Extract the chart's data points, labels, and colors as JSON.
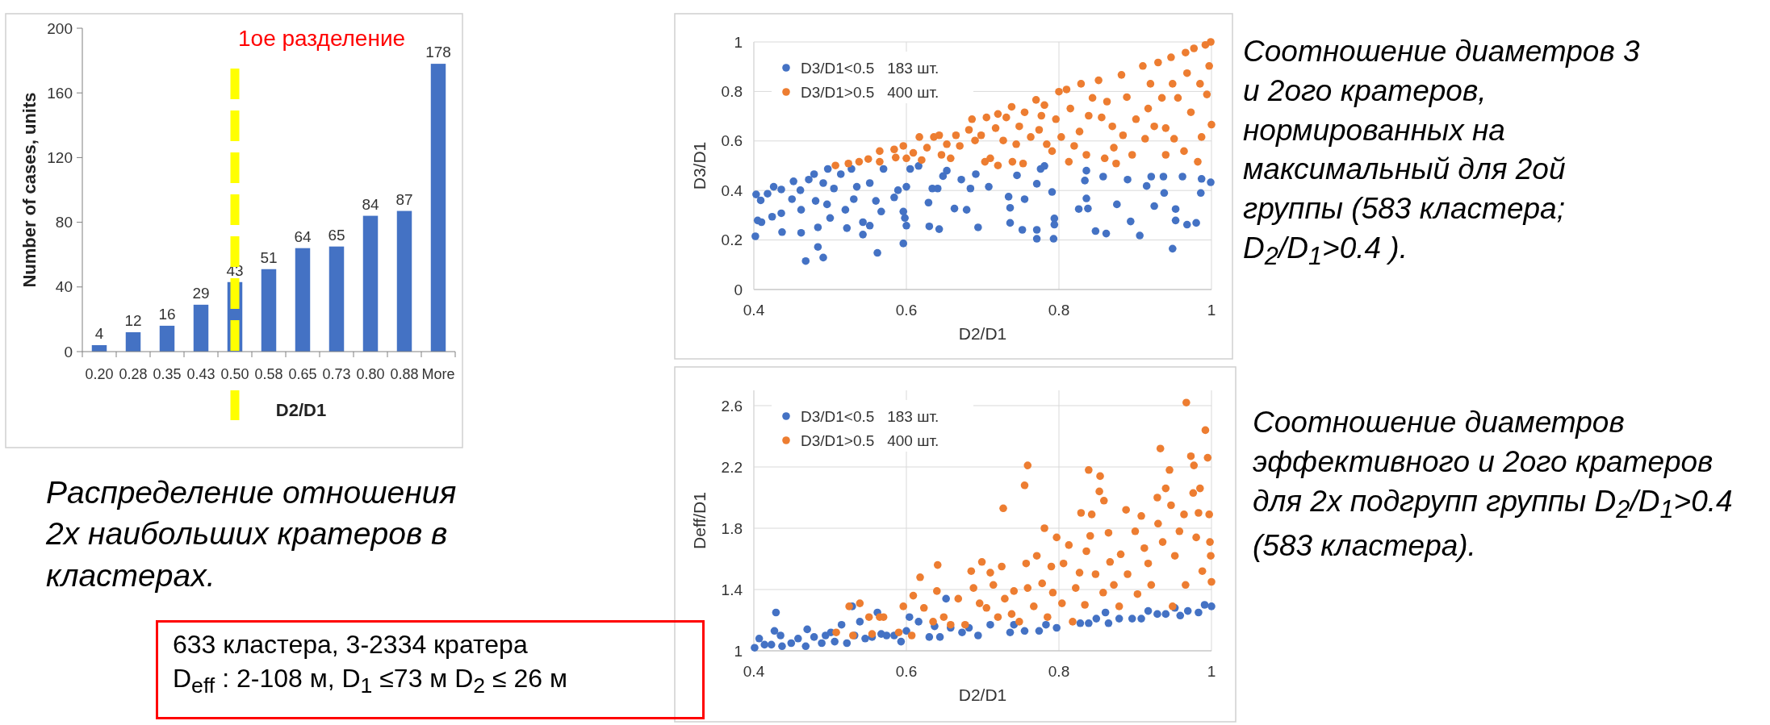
{
  "chart_data": [
    {
      "type": "bar",
      "xlabel": "D2/D1",
      "ylabel": "Number of cases, units",
      "categories": [
        "0.20",
        "0.28",
        "0.35",
        "0.43",
        "0.50",
        "0.58",
        "0.65",
        "0.73",
        "0.80",
        "0.88",
        "More"
      ],
      "values": [
        4,
        12,
        16,
        29,
        43,
        51,
        64,
        65,
        84,
        87,
        178
      ],
      "color": "#4472c4",
      "ylim": [
        0,
        200
      ],
      "yticks": [
        0,
        40,
        80,
        120,
        160,
        200
      ],
      "data_labels": true,
      "ref_lines": [
        {
          "axis": "x",
          "value": "0.50",
          "label": "1ое разделение",
          "color": "#ffff00",
          "line_style": "dashed"
        }
      ],
      "annotations": [
        "Распределение отношения 2х наибольших кратеров в кластерах.",
        "633 кластера, 3-2334 кратера\nD$_{eff}$ : 2-108 м, D$_{1}$ ≤73 м D$_{2}$ ≤ 26 м"
      ]
    },
    {
      "type": "scatter",
      "xlabel": "D2/D1",
      "ylabel": "D3/D1",
      "xlim": [
        0.4,
        1
      ],
      "xticks": [
        0.4,
        0.6,
        0.8,
        1
      ],
      "ylim": [
        0,
        1
      ],
      "yticks": [
        0,
        0.2,
        0.4,
        0.6,
        0.8,
        1
      ],
      "grid": true,
      "legend": "top left",
      "marker": "circle",
      "series": [
        {
          "name": "D3/D1<0.5   183 шт.",
          "color": "#4472c4",
          "x": [
            0.402,
            0.403,
            0.405,
            0.41,
            0.409,
            0.418,
            0.426,
            0.424,
            0.436,
            0.437,
            0.436,
            0.45,
            0.452,
            0.461,
            0.462,
            0.462,
            0.468,
            0.472,
            0.479,
            0.484,
            0.484,
            0.481,
            0.491,
            0.491,
            0.496,
            0.5,
            0.497,
            0.505,
            0.514,
            0.52,
            0.522,
            0.528,
            0.531,
            0.535,
            0.543,
            0.543,
            0.552,
            0.552,
            0.56,
            0.562,
            0.567,
            0.57,
            0.584,
            0.589,
            0.596,
            0.596,
            0.598,
            0.6,
            0.6,
            0.605,
            0.616,
            0.629,
            0.63,
            0.634,
            0.641,
            0.643,
            0.648,
            0.653,
            0.663,
            0.672,
            0.679,
            0.684,
            0.691,
            0.694,
            0.708,
            0.734,
            0.736,
            0.736,
            0.745,
            0.752,
            0.755,
            0.771,
            0.771,
            0.771,
            0.776,
            0.781,
            0.791,
            0.793,
            0.794,
            0.794,
            0.826,
            0.836,
            0.836,
            0.838,
            0.834,
            0.848,
            0.858,
            0.862,
            0.876,
            0.89,
            0.894,
            0.906,
            0.915,
            0.921,
            0.925,
            0.937,
            0.938,
            0.949,
            0.953,
            0.953,
            0.962,
            0.968,
            0.98,
            0.986,
            0.987,
            0.999
          ],
          "values": [
            0.215,
            0.384,
            0.279,
            0.272,
            0.36,
            0.387,
            0.415,
            0.294,
            0.308,
            0.232,
            0.404,
            0.365,
            0.437,
            0.401,
            0.322,
            0.229,
            0.115,
            0.444,
            0.466,
            0.172,
            0.251,
            0.358,
            0.129,
            0.43,
            0.344,
            0.289,
            0.487,
            0.408,
            0.466,
            0.322,
            0.248,
            0.487,
            0.365,
            0.415,
            0.272,
            0.222,
            0.258,
            0.43,
            0.358,
            0.148,
            0.315,
            0.487,
            0.372,
            0.401,
            0.315,
            0.186,
            0.289,
            0.258,
            0.415,
            0.487,
            0.499,
            0.351,
            0.255,
            0.408,
            0.408,
            0.244,
            0.458,
            0.48,
            0.327,
            0.444,
            0.322,
            0.408,
            0.466,
            0.251,
            0.415,
            0.375,
            0.33,
            0.269,
            0.461,
            0.241,
            0.365,
            0.241,
            0.205,
            0.427,
            0.487,
            0.499,
            0.394,
            0.205,
            0.287,
            0.262,
            0.325,
            0.48,
            0.368,
            0.327,
            0.44,
            0.236,
            0.456,
            0.226,
            0.344,
            0.444,
            0.275,
            0.218,
            0.418,
            0.456,
            0.337,
            0.456,
            0.39,
            0.165,
            0.325,
            0.279,
            0.456,
            0.262,
            0.269,
            0.39,
            0.447,
            0.433
          ]
        },
        {
          "name": "D3/D1>0.5   400 шт.",
          "color": "#ed7d31",
          "x": [
            0.507,
            0.524,
            0.538,
            0.55,
            0.565,
            0.565,
            0.584,
            0.586,
            0.596,
            0.6,
            0.609,
            0.617,
            0.62,
            0.627,
            0.636,
            0.643,
            0.646,
            0.653,
            0.658,
            0.665,
            0.67,
            0.682,
            0.686,
            0.69,
            0.698,
            0.703,
            0.705,
            0.71,
            0.717,
            0.72,
            0.72,
            0.727,
            0.731,
            0.739,
            0.738,
            0.744,
            0.748,
            0.753,
            0.755,
            0.763,
            0.77,
            0.774,
            0.777,
            0.781,
            0.784,
            0.791,
            0.796,
            0.8,
            0.803,
            0.81,
            0.813,
            0.815,
            0.82,
            0.827,
            0.829,
            0.836,
            0.839,
            0.844,
            0.852,
            0.856,
            0.86,
            0.863,
            0.87,
            0.872,
            0.875,
            0.882,
            0.884,
            0.889,
            0.896,
            0.901,
            0.91,
            0.913,
            0.917,
            0.92,
            0.925,
            0.93,
            0.935,
            0.94,
            0.94,
            0.947,
            0.949,
            0.951,
            0.956,
            0.964,
            0.966,
            0.968,
            0.973,
            0.977,
            0.982,
            0.985,
            0.987,
            0.992,
            0.994,
            0.997,
            0.999,
            1.0
          ],
          "values": [
            0.501,
            0.509,
            0.516,
            0.527,
            0.559,
            0.516,
            0.566,
            0.533,
            0.58,
            0.53,
            0.552,
            0.616,
            0.523,
            0.573,
            0.616,
            0.623,
            0.544,
            0.587,
            0.53,
            0.623,
            0.58,
            0.645,
            0.688,
            0.602,
            0.623,
            0.516,
            0.695,
            0.53,
            0.652,
            0.709,
            0.501,
            0.602,
            0.695,
            0.516,
            0.738,
            0.587,
            0.659,
            0.509,
            0.716,
            0.616,
            0.766,
            0.645,
            0.702,
            0.745,
            0.587,
            0.559,
            0.688,
            0.799,
            0.616,
            0.808,
            0.516,
            0.731,
            0.58,
            0.638,
            0.831,
            0.544,
            0.702,
            0.774,
            0.845,
            0.695,
            0.53,
            0.759,
            0.659,
            0.573,
            0.509,
            0.867,
            0.623,
            0.777,
            0.544,
            0.688,
            0.903,
            0.609,
            0.731,
            0.831,
            0.659,
            0.917,
            0.774,
            0.652,
            0.544,
            0.938,
            0.831,
            0.609,
            0.774,
            0.559,
            0.957,
            0.874,
            0.716,
            0.974,
            0.516,
            0.831,
            0.616,
            0.988,
            0.788,
            0.903,
            1.0,
            0.666
          ]
        }
      ],
      "annotations": [
        "Соотношение диаметров 3 и 2ого кратеров, нормированных на максимальный для 2ой группы (583 кластера; D$_{2}$/D$_{1}$>0.4 )."
      ]
    },
    {
      "type": "scatter",
      "xlabel": "D2/D1",
      "ylabel": "Deff/D1",
      "xlim": [
        0.4,
        1
      ],
      "xticks": [
        0.4,
        0.6,
        0.8,
        1
      ],
      "ylim": [
        1,
        2.7
      ],
      "yticks": [
        1,
        1.4,
        1.8,
        2.2,
        2.6
      ],
      "grid": true,
      "legend": "top left",
      "marker": "circle",
      "series": [
        {
          "name": "D3/D1<0.5   183 шт.",
          "color": "#4472c4",
          "x": [
            0.401,
            0.407,
            0.414,
            0.423,
            0.429,
            0.427,
            0.435,
            0.437,
            0.449,
            0.458,
            0.47,
            0.468,
            0.479,
            0.489,
            0.494,
            0.501,
            0.506,
            0.515,
            0.522,
            0.529,
            0.532,
            0.539,
            0.546,
            0.555,
            0.562,
            0.567,
            0.574,
            0.584,
            0.593,
            0.6,
            0.604,
            0.616,
            0.63,
            0.637,
            0.644,
            0.652,
            0.658,
            0.673,
            0.682,
            0.694,
            0.71,
            0.736,
            0.741,
            0.755,
            0.774,
            0.783,
            0.797,
            0.828,
            0.839,
            0.849,
            0.861,
            0.865,
            0.879,
            0.896,
            0.908,
            0.917,
            0.929,
            0.94,
            0.952,
            0.959,
            0.969,
            0.983,
            0.991,
            1.0
          ],
          "values": [
            1.02,
            1.08,
            1.04,
            1.04,
            1.25,
            1.13,
            1.1,
            1.03,
            1.05,
            1.08,
            1.14,
            1.03,
            1.09,
            1.05,
            1.1,
            1.12,
            1.06,
            1.17,
            1.05,
            1.29,
            1.1,
            1.19,
            1.08,
            1.09,
            1.25,
            1.11,
            1.1,
            1.1,
            1.06,
            1.13,
            1.22,
            1.19,
            1.09,
            1.16,
            1.09,
            1.34,
            1.15,
            1.12,
            1.15,
            1.1,
            1.17,
            1.12,
            1.17,
            1.13,
            1.13,
            1.17,
            1.15,
            1.18,
            1.18,
            1.21,
            1.25,
            1.18,
            1.21,
            1.21,
            1.21,
            1.26,
            1.24,
            1.24,
            1.28,
            1.23,
            1.26,
            1.25,
            1.3,
            1.29
          ]
        },
        {
          "name": "D3/D1>0.5   400 шт.",
          "color": "#ed7d31",
          "x": [
            0.508,
            0.525,
            0.53,
            0.539,
            0.551,
            0.555,
            0.565,
            0.57,
            0.59,
            0.596,
            0.607,
            0.609,
            0.618,
            0.623,
            0.635,
            0.64,
            0.641,
            0.649,
            0.658,
            0.668,
            0.677,
            0.685,
            0.688,
            0.696,
            0.699,
            0.705,
            0.71,
            0.714,
            0.72,
            0.725,
            0.727,
            0.729,
            0.738,
            0.741,
            0.748,
            0.755,
            0.757,
            0.759,
            0.759,
            0.767,
            0.771,
            0.778,
            0.781,
            0.785,
            0.79,
            0.792,
            0.797,
            0.804,
            0.806,
            0.813,
            0.818,
            0.822,
            0.827,
            0.829,
            0.834,
            0.836,
            0.839,
            0.841,
            0.843,
            0.848,
            0.853,
            0.854,
            0.858,
            0.859,
            0.865,
            0.867,
            0.872,
            0.879,
            0.881,
            0.888,
            0.89,
            0.9,
            0.903,
            0.908,
            0.912,
            0.917,
            0.921,
            0.929,
            0.93,
            0.933,
            0.936,
            0.94,
            0.945,
            0.947,
            0.949,
            0.952,
            0.958,
            0.964,
            0.966,
            0.967,
            0.973,
            0.976,
            0.977,
            0.98,
            0.983,
            0.985,
            0.988,
            0.992,
            0.995,
            0.997,
            0.998,
            1.0,
            0.999
          ],
          "values": [
            1.12,
            1.29,
            1.1,
            1.31,
            1.22,
            1.11,
            1.22,
            1.22,
            1.12,
            1.29,
            1.1,
            1.36,
            1.48,
            1.28,
            1.19,
            1.39,
            1.56,
            1.22,
            1.17,
            1.34,
            1.17,
            1.52,
            1.41,
            1.31,
            1.58,
            1.28,
            1.51,
            1.43,
            1.22,
            1.55,
            1.93,
            1.34,
            1.24,
            1.39,
            1.19,
            2.08,
            1.57,
            2.21,
            1.41,
            1.29,
            1.62,
            1.44,
            1.8,
            1.22,
            1.55,
            1.38,
            1.74,
            1.31,
            1.57,
            1.69,
            1.19,
            1.41,
            1.51,
            1.9,
            1.3,
            1.65,
            2.18,
            1.75,
            1.89,
            1.5,
            2.04,
            2.14,
            1.38,
            1.98,
            1.77,
            1.58,
            1.43,
            1.29,
            1.63,
            1.92,
            1.5,
            1.78,
            1.37,
            1.88,
            1.67,
            1.57,
            1.43,
            2.0,
            1.83,
            2.32,
            1.71,
            2.06,
            2.18,
            1.95,
            1.29,
            1.62,
            1.78,
            1.89,
            1.43,
            2.62,
            2.27,
            2.03,
            2.21,
            1.74,
            1.9,
            2.06,
            1.52,
            2.44,
            2.26,
            1.89,
            1.71,
            1.45,
            1.62
          ]
        }
      ],
      "annotations": [
        "Соотношение диаметров эффективного и 2ого кратеров для 2х подгрупп группы D$_{2}$/D$_{1}$>0.4 (583 кластера)."
      ]
    }
  ]
}
